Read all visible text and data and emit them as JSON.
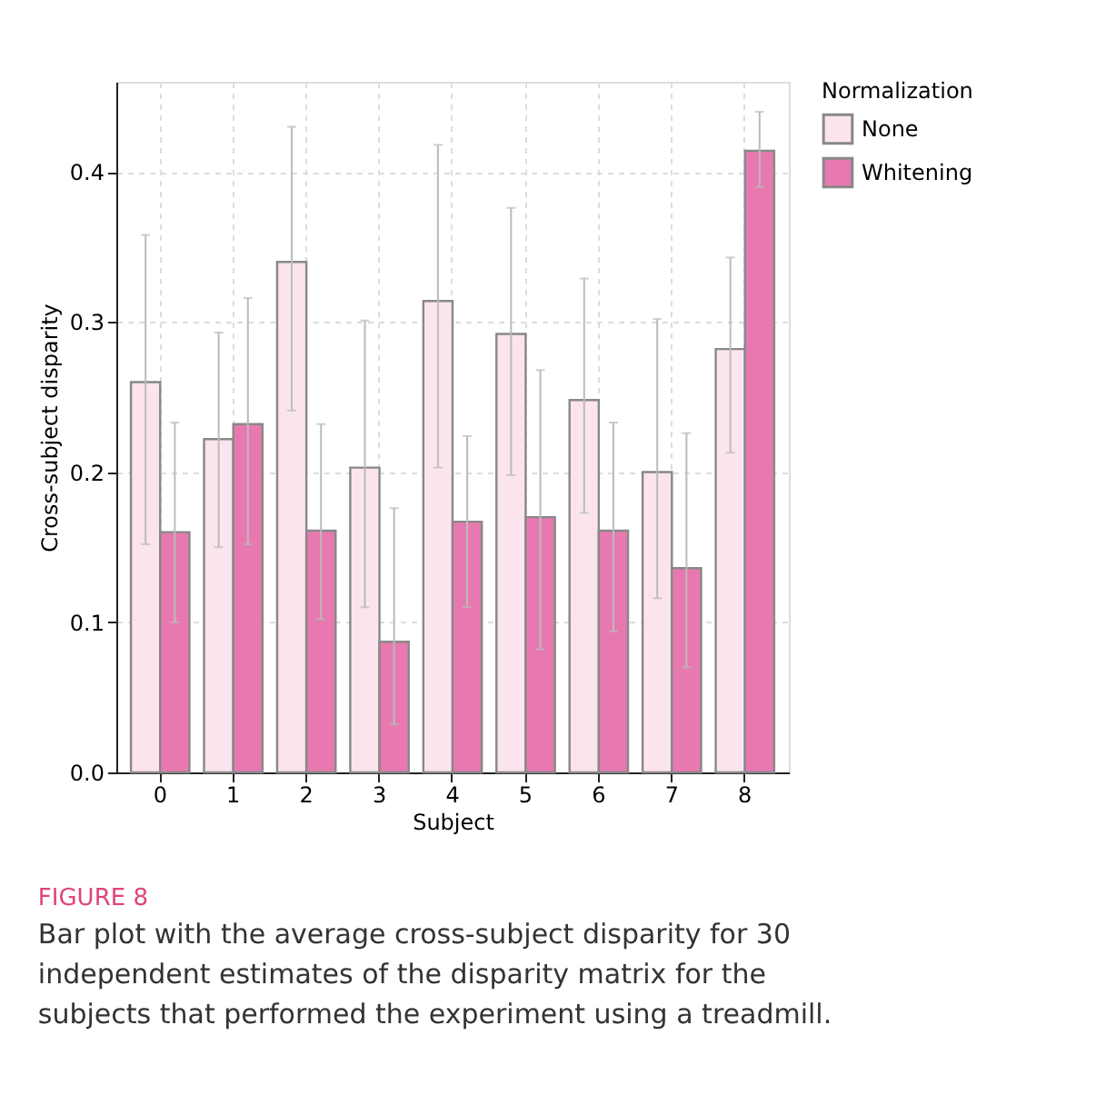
{
  "chart_data": {
    "type": "bar",
    "xlabel": "Subject",
    "ylabel": "Cross-subject disparity",
    "legend_title": "Normalization",
    "categories": [
      "0",
      "1",
      "2",
      "3",
      "4",
      "5",
      "6",
      "7",
      "8"
    ],
    "series": [
      {
        "name": "None",
        "color": "#fce4ef",
        "values": [
          0.26,
          0.222,
          0.34,
          0.203,
          0.314,
          0.292,
          0.248,
          0.2,
          0.282
        ],
        "errors": [
          [
            0.152,
            0.358
          ],
          [
            0.15,
            0.293
          ],
          [
            0.241,
            0.43
          ],
          [
            0.11,
            0.301
          ],
          [
            0.203,
            0.418
          ],
          [
            0.198,
            0.376
          ],
          [
            0.173,
            0.329
          ],
          [
            0.116,
            0.302
          ],
          [
            0.213,
            0.343
          ]
        ]
      },
      {
        "name": "Whitening",
        "color": "#e879b0",
        "values": [
          0.16,
          0.232,
          0.161,
          0.087,
          0.167,
          0.17,
          0.161,
          0.136,
          0.414
        ],
        "errors": [
          [
            0.1,
            0.233
          ],
          [
            0.152,
            0.316
          ],
          [
            0.102,
            0.232
          ],
          [
            0.032,
            0.176
          ],
          [
            0.11,
            0.224
          ],
          [
            0.082,
            0.268
          ],
          [
            0.094,
            0.233
          ],
          [
            0.07,
            0.226
          ],
          [
            0.39,
            0.44
          ]
        ]
      }
    ],
    "ylim": [
      0,
      0.46
    ],
    "yticks": [
      {
        "value": 0,
        "label": "0.0"
      },
      {
        "value": 0.1,
        "label": "0.1"
      },
      {
        "value": 0.2,
        "label": "0.2"
      },
      {
        "value": 0.3,
        "label": "0.3"
      },
      {
        "value": 0.4,
        "label": "0.4"
      }
    ],
    "grid": true,
    "legend": "right",
    "annotations": [
      "FIGURE 8",
      "Bar plot with the average cross-subject disparity for 30 independent estimates of the disparity matrix for the subjects that performed the experiment using a treadmill."
    ]
  }
}
